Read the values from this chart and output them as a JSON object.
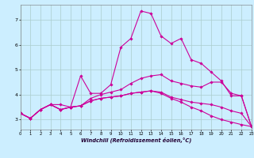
{
  "background_color": "#cceeff",
  "grid_color": "#aacccc",
  "line_color": "#cc0099",
  "xlabel": "Windchill (Refroidissement éolien,°C)",
  "xlim": [
    0,
    23
  ],
  "ylim": [
    2.6,
    7.6
  ],
  "xticks": [
    0,
    1,
    2,
    3,
    4,
    5,
    6,
    7,
    8,
    9,
    10,
    11,
    12,
    13,
    14,
    15,
    16,
    17,
    18,
    19,
    20,
    21,
    22,
    23
  ],
  "yticks": [
    3,
    4,
    5,
    6,
    7
  ],
  "line1_x": [
    0,
    1,
    2,
    3,
    4,
    5,
    6,
    7,
    8,
    9,
    10,
    11,
    12,
    13,
    14,
    15,
    16,
    17,
    18,
    19,
    20,
    21,
    22,
    23
  ],
  "line1_y": [
    3.25,
    3.05,
    3.4,
    3.6,
    3.6,
    3.5,
    4.75,
    4.05,
    4.05,
    4.4,
    5.9,
    6.25,
    7.35,
    7.25,
    6.35,
    6.05,
    6.25,
    5.4,
    5.25,
    4.9,
    4.55,
    3.95,
    3.95,
    2.72
  ],
  "line2_x": [
    0,
    1,
    2,
    3,
    4,
    5,
    6,
    7,
    8,
    9,
    10,
    11,
    12,
    13,
    14,
    15,
    16,
    17,
    18,
    19,
    20,
    21,
    22,
    23
  ],
  "line2_y": [
    3.25,
    3.05,
    3.4,
    3.6,
    3.4,
    3.5,
    3.55,
    3.85,
    4.0,
    4.1,
    4.2,
    4.45,
    4.65,
    4.75,
    4.8,
    4.55,
    4.45,
    4.35,
    4.3,
    4.5,
    4.5,
    4.05,
    3.95,
    2.72
  ],
  "line3_x": [
    0,
    1,
    2,
    3,
    4,
    5,
    6,
    7,
    8,
    9,
    10,
    11,
    12,
    13,
    14,
    15,
    16,
    17,
    18,
    19,
    20,
    21,
    22,
    23
  ],
  "line3_y": [
    3.25,
    3.05,
    3.4,
    3.6,
    3.4,
    3.5,
    3.55,
    3.75,
    3.85,
    3.9,
    3.95,
    4.05,
    4.1,
    4.15,
    4.1,
    3.9,
    3.8,
    3.7,
    3.65,
    3.6,
    3.5,
    3.35,
    3.25,
    2.72
  ],
  "line4_x": [
    0,
    1,
    2,
    3,
    4,
    5,
    6,
    7,
    8,
    9,
    10,
    11,
    12,
    13,
    14,
    15,
    16,
    17,
    18,
    19,
    20,
    21,
    22,
    23
  ],
  "line4_y": [
    3.25,
    3.05,
    3.4,
    3.6,
    3.4,
    3.5,
    3.55,
    3.75,
    3.85,
    3.9,
    3.95,
    4.05,
    4.1,
    4.15,
    4.05,
    3.85,
    3.7,
    3.5,
    3.35,
    3.15,
    3.0,
    2.9,
    2.8,
    2.72
  ]
}
